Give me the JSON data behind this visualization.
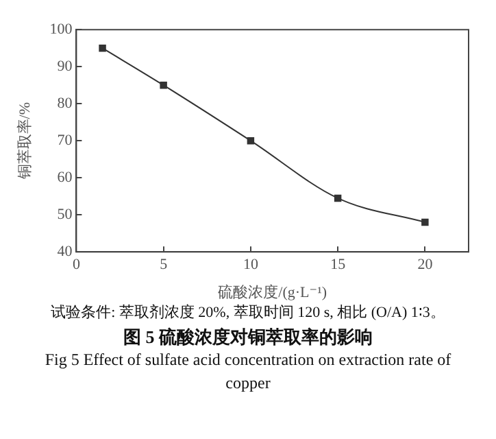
{
  "chart_data": {
    "type": "line",
    "xlabel": "硫酸浓度/(g·L⁻¹)",
    "ylabel": "铜萃取率/%",
    "annotations": [
      "试验条件: 萃取剂浓度 20%, 萃取时间 120 s, 相比 (O/A) 1∶3。"
    ],
    "title": "图 5 硫酸浓度对铜萃取率的影响",
    "subtitle": "Fig 5 Effect of sulfate acid concentration on extraction rate of copper",
    "x": [
      1.5,
      5,
      10,
      15,
      20
    ],
    "series": [
      {
        "color": "#333333",
        "values": [
          95,
          85,
          70,
          54.5,
          48
        ]
      }
    ],
    "xlim": [
      0,
      22.5
    ],
    "xticks": [
      0,
      5,
      10,
      15,
      20
    ],
    "ylim": [
      40,
      100
    ],
    "yticks": [
      40,
      50,
      60,
      70,
      80,
      90,
      100
    ],
    "grid": false,
    "legend": false,
    "marker": "square",
    "line_style": "solid"
  }
}
